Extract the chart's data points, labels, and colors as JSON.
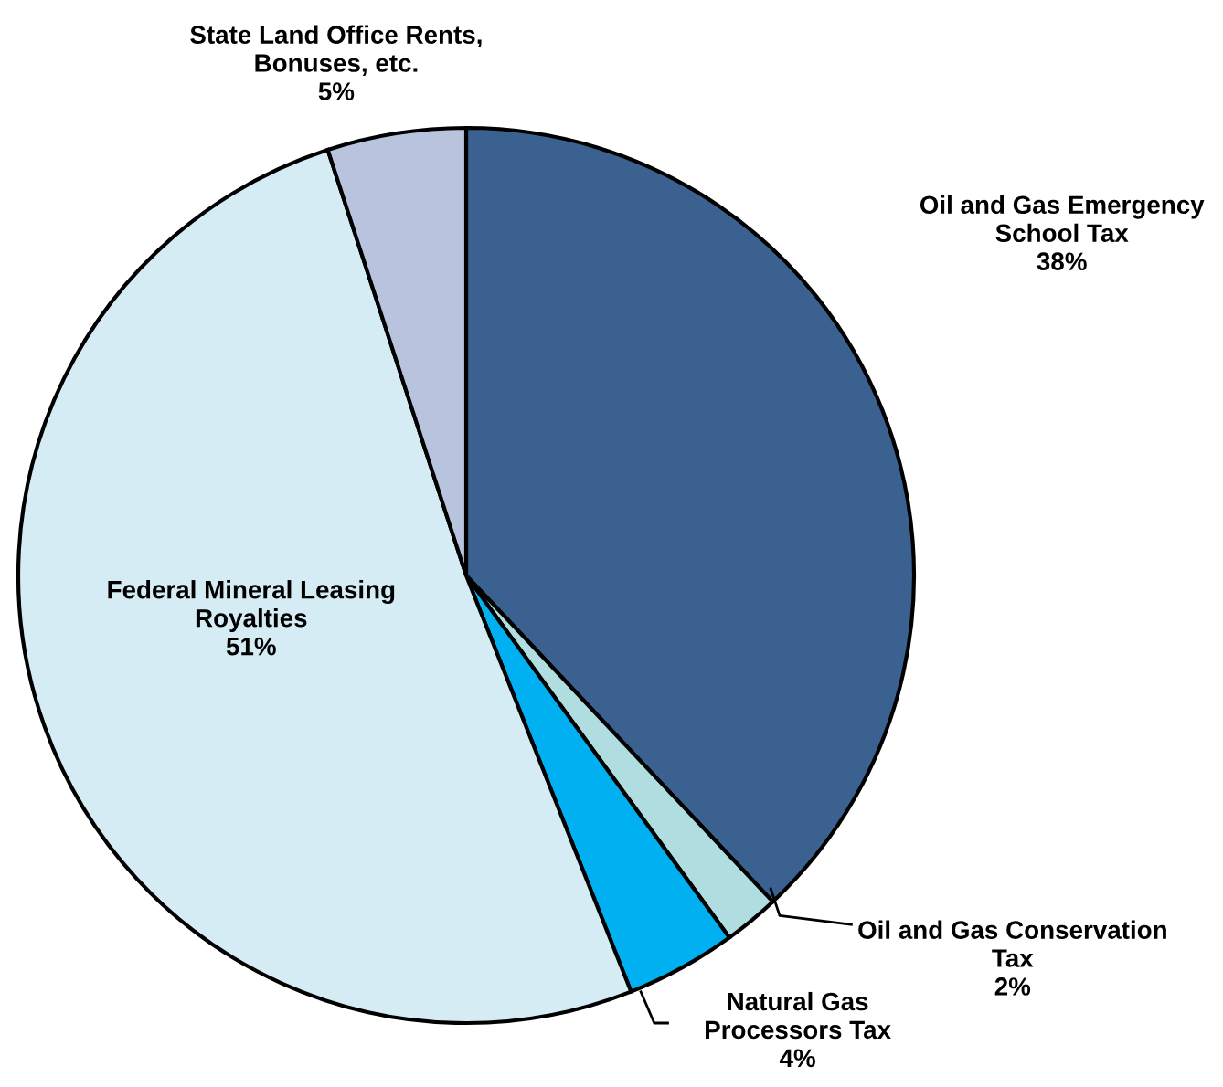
{
  "chart_data": {
    "type": "pie",
    "categories": [
      "Oil and Gas Emergency School Tax",
      "Oil and Gas Conservation Tax",
      "Natural Gas Processors Tax",
      "Federal Mineral Leasing Royalties",
      "State Land Office Rents, Bonuses, etc."
    ],
    "values": [
      38,
      2,
      4,
      51,
      5
    ],
    "colors": [
      "#3a6190",
      "#b0dde0",
      "#00b0f0",
      "#d5ecf5",
      "#b8c4de"
    ],
    "value_labels": [
      "38%",
      "2%",
      "4%",
      "51%",
      "5%"
    ]
  }
}
